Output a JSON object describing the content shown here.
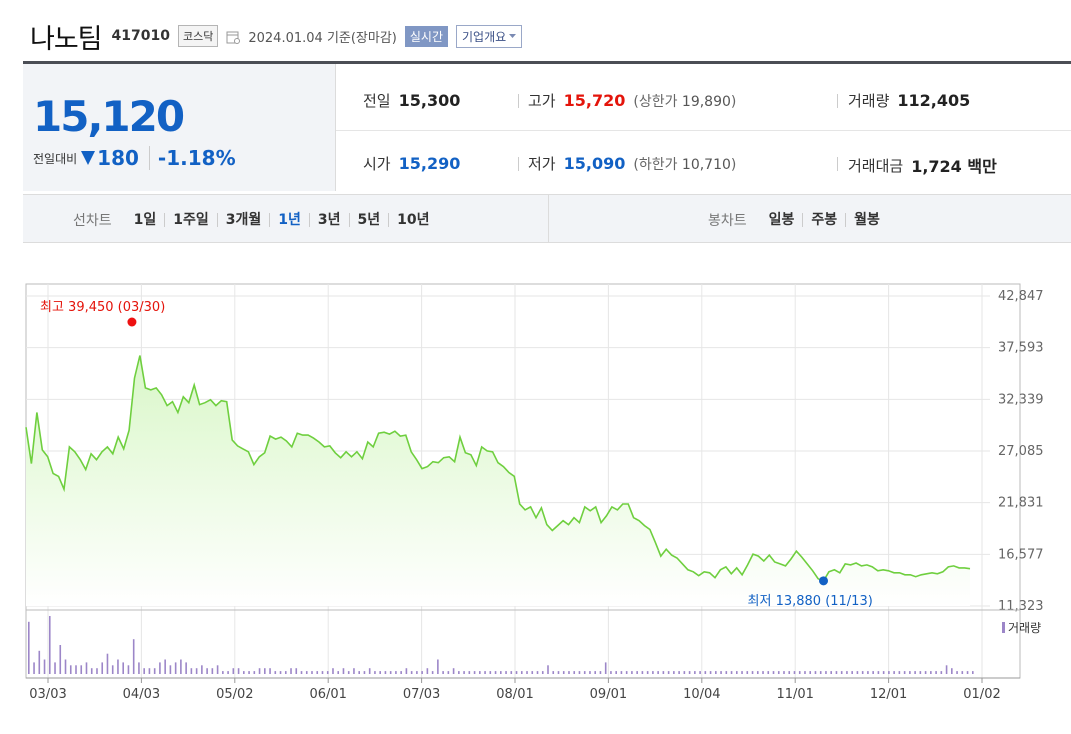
{
  "header": {
    "name": "나노팀",
    "code": "417010",
    "market": "코스닥",
    "date": "2024.01.04",
    "basis": "기준(장마감)",
    "realtime": "실시간",
    "overview": "기업개요"
  },
  "price": {
    "current": "15,120",
    "change_label": "전일대비",
    "change": "180",
    "change_pct": "-1.18%"
  },
  "stats": {
    "prev_label": "전일",
    "prev": "15,300",
    "high_label": "고가",
    "high": "15,720",
    "upper_label": "(상한가",
    "upper": "19,890",
    "upper_close": ")",
    "volume_label": "거래량",
    "volume": "112,405",
    "open_label": "시가",
    "open": "15,290",
    "low_label": "저가",
    "low": "15,090",
    "lower_label": "(하한가",
    "lower": "10,710",
    "lower_close": ")",
    "amount_label": "거래대금",
    "amount": "1,724",
    "amount_unit": "백만"
  },
  "periods": {
    "line_label": "선차트",
    "line_items": [
      "1일",
      "1주일",
      "3개월",
      "1년",
      "3년",
      "5년",
      "10년"
    ],
    "active": "1년",
    "candle_label": "봉차트",
    "candle_items": [
      "일봉",
      "주봉",
      "월봉"
    ]
  },
  "chart_data": {
    "type": "area",
    "x_ticks": [
      "03/03",
      "04/03",
      "05/02",
      "06/01",
      "07/03",
      "08/01",
      "09/01",
      "10/04",
      "11/01",
      "12/01",
      "01/02"
    ],
    "y_ticks": [
      42847,
      37593,
      32339,
      27085,
      21831,
      16577,
      11323
    ],
    "y_tick_labels": [
      "42,847",
      "37,593",
      "32,339",
      "27,085",
      "21,831",
      "16,577",
      "11,323"
    ],
    "ylim": [
      11323,
      42847
    ],
    "grid": true,
    "max_annotation": {
      "label": "최고",
      "value": "39,450",
      "date": "(03/30)"
    },
    "min_annotation": {
      "label": "최저",
      "value": "13,880",
      "date": "(11/13)"
    },
    "line_color": "#6fcf3f",
    "fill_color": "#d9f7c8",
    "volume_label": "거래량",
    "volume_color": "#9c86c8",
    "series": [
      {
        "values": [
          29500,
          25800,
          31000,
          27200,
          26500,
          24800,
          24500,
          23200,
          27500,
          27000,
          26200,
          25200,
          26800,
          26200,
          27000,
          27500,
          26800,
          28500,
          27300,
          29200,
          34500,
          36800,
          33500,
          33300,
          33500,
          32800,
          31700,
          32100,
          31000,
          32600,
          32000,
          33800,
          31800,
          32000,
          32300,
          31700,
          32200,
          32100,
          28200,
          27600,
          27300,
          27000,
          25700,
          26500,
          26900,
          28600,
          28300,
          28500,
          28100,
          27500,
          28900,
          28700,
          28700,
          28400,
          28000,
          27500,
          27600,
          26900,
          26400,
          27000,
          26500,
          27000,
          26300,
          28000,
          27500,
          28900,
          29000,
          28800,
          29100,
          28600,
          28700,
          27000,
          26200,
          25300,
          25500,
          26000,
          25900,
          26400,
          26500,
          26000,
          28500,
          26900,
          26700,
          25600,
          27500,
          27100,
          27000,
          25900,
          25500,
          24900,
          24500,
          21700,
          21100,
          21400,
          20300,
          21300,
          19600,
          19000,
          19500,
          20000,
          19600,
          20300,
          19800,
          21400,
          21000,
          21400,
          19800,
          20500,
          21400,
          21100,
          21700,
          21700,
          20300,
          20000,
          19500,
          19100,
          17800,
          16400,
          17100,
          16500,
          16200,
          15600,
          15000,
          14800,
          14400,
          14800,
          14700,
          14200,
          15000,
          15300,
          14600,
          15200,
          14500,
          15500,
          16600,
          16400,
          15900,
          16500,
          15800,
          15600,
          15400,
          16100,
          16900,
          16300,
          15600,
          14900,
          14100,
          13880,
          14800,
          15000,
          14700,
          15600,
          15500,
          15700,
          15400,
          15500,
          15300,
          14900,
          15000,
          14900,
          14700,
          14700,
          14500,
          14500,
          14300,
          14500,
          14600,
          14700,
          14600,
          14800,
          15300,
          15400,
          15200,
          15200,
          15120
        ]
      }
    ],
    "volume": [
      18,
      4,
      8,
      5,
      20,
      4,
      10,
      5,
      3,
      3,
      3,
      4,
      2,
      2,
      4,
      7,
      3,
      5,
      4,
      3,
      12,
      4,
      2,
      2,
      2,
      4,
      5,
      3,
      4,
      5,
      4,
      2,
      2,
      3,
      2,
      2,
      3,
      1,
      1,
      2,
      2,
      1,
      1,
      1,
      2,
      2,
      2,
      1,
      1,
      1,
      2,
      2,
      1,
      1,
      1,
      1,
      1,
      1,
      2,
      1,
      2,
      1,
      2,
      1,
      1,
      2,
      1,
      1,
      1,
      1,
      1,
      1,
      2,
      1,
      1,
      1,
      2,
      1,
      5,
      1,
      1,
      2,
      1,
      1,
      1,
      1,
      1,
      1,
      1,
      1,
      1,
      1,
      1,
      1,
      1,
      1,
      1,
      1,
      1,
      3,
      1,
      1,
      1,
      1,
      1,
      1,
      1,
      1,
      1,
      1,
      4,
      1,
      1,
      1,
      1,
      1,
      1,
      1,
      1,
      1,
      1,
      1,
      1,
      1,
      1,
      1,
      1,
      1,
      1,
      1,
      1,
      1,
      1,
      1,
      1,
      1,
      1,
      1,
      1,
      1,
      1,
      1,
      1,
      1,
      1,
      1,
      1,
      1,
      1,
      1,
      1,
      1,
      1,
      1,
      1,
      1,
      1,
      1,
      1,
      1,
      1,
      1,
      1,
      1,
      1,
      1,
      1,
      1,
      1,
      1,
      1,
      1,
      1,
      1,
      1,
      3,
      2,
      1,
      1,
      1,
      1
    ]
  }
}
